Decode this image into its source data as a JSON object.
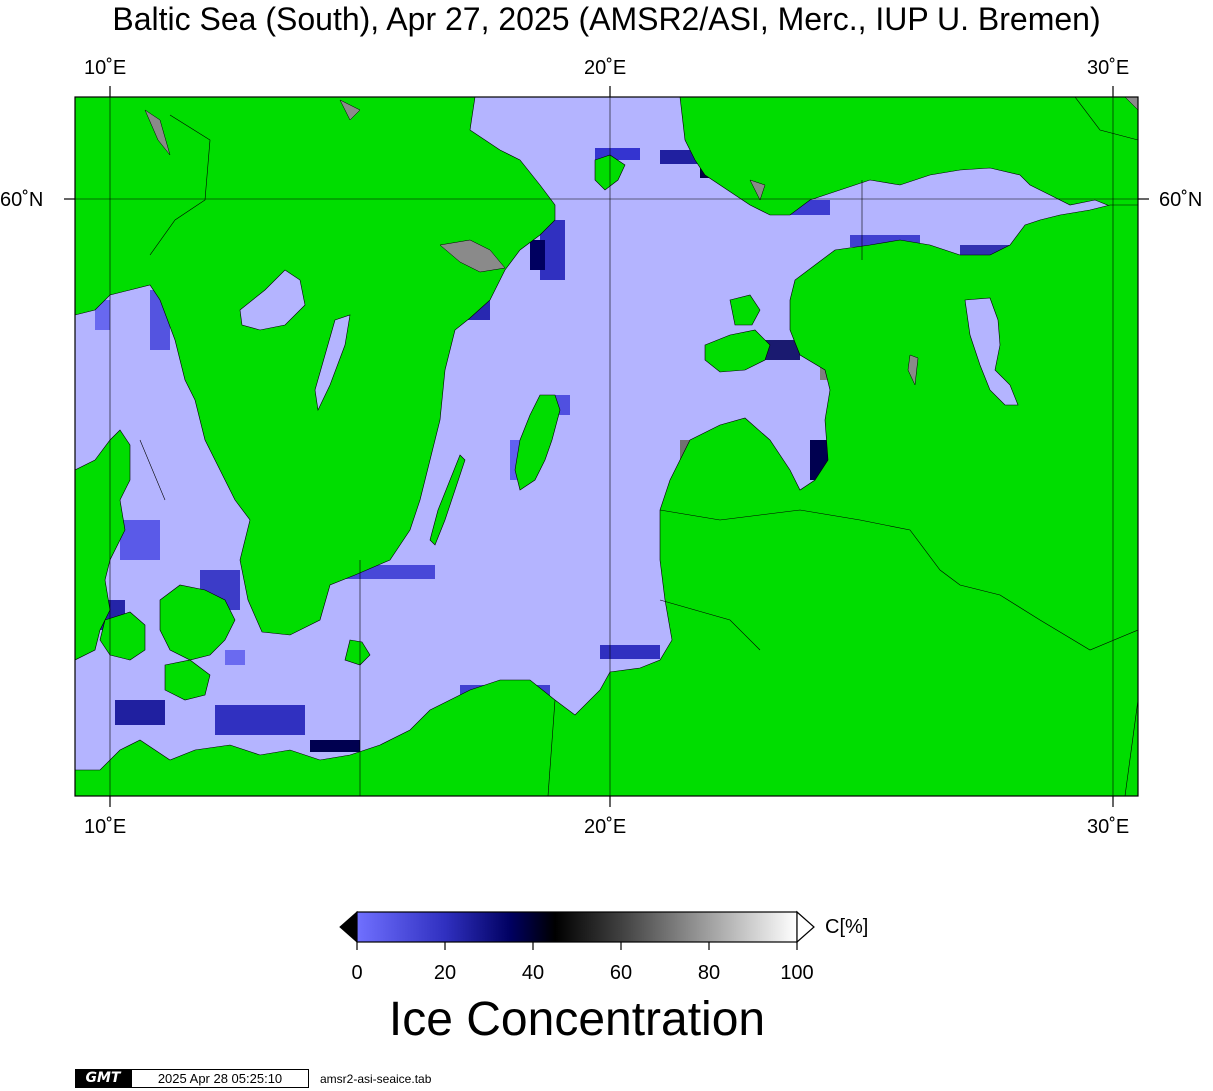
{
  "title": "Baltic Sea (South), Apr 27, 2025 (AMSR2/ASI, Merc., IUP U. Bremen)",
  "axes": {
    "top_ticks": [
      "10˚E",
      "20˚E",
      "30˚E"
    ],
    "bottom_ticks": [
      "10˚E",
      "20˚E",
      "30˚E"
    ],
    "left_ticks": [
      "60˚N"
    ],
    "right_ticks": [
      "60˚N"
    ],
    "lon_range": [
      9.3,
      30.6
    ],
    "lat_gridline": 60
  },
  "colors": {
    "land": "#00dd00",
    "open_water": "#b4b4ff",
    "ice_low": "#7070ff",
    "ice_mid": "#000060",
    "ice_high": "#ffffff",
    "no_data": "#8a8a8a",
    "frame": "#000000"
  },
  "colorbar": {
    "tick_labels": [
      "0",
      "20",
      "40",
      "60",
      "80",
      "100"
    ],
    "unit_label": "C[%]",
    "title": "Ice Concentration"
  },
  "footer": {
    "logo_text": "GMT",
    "timestamp": "2025 Apr 28 05:25:10",
    "command": "amsr2-asi-seaice.tab"
  }
}
